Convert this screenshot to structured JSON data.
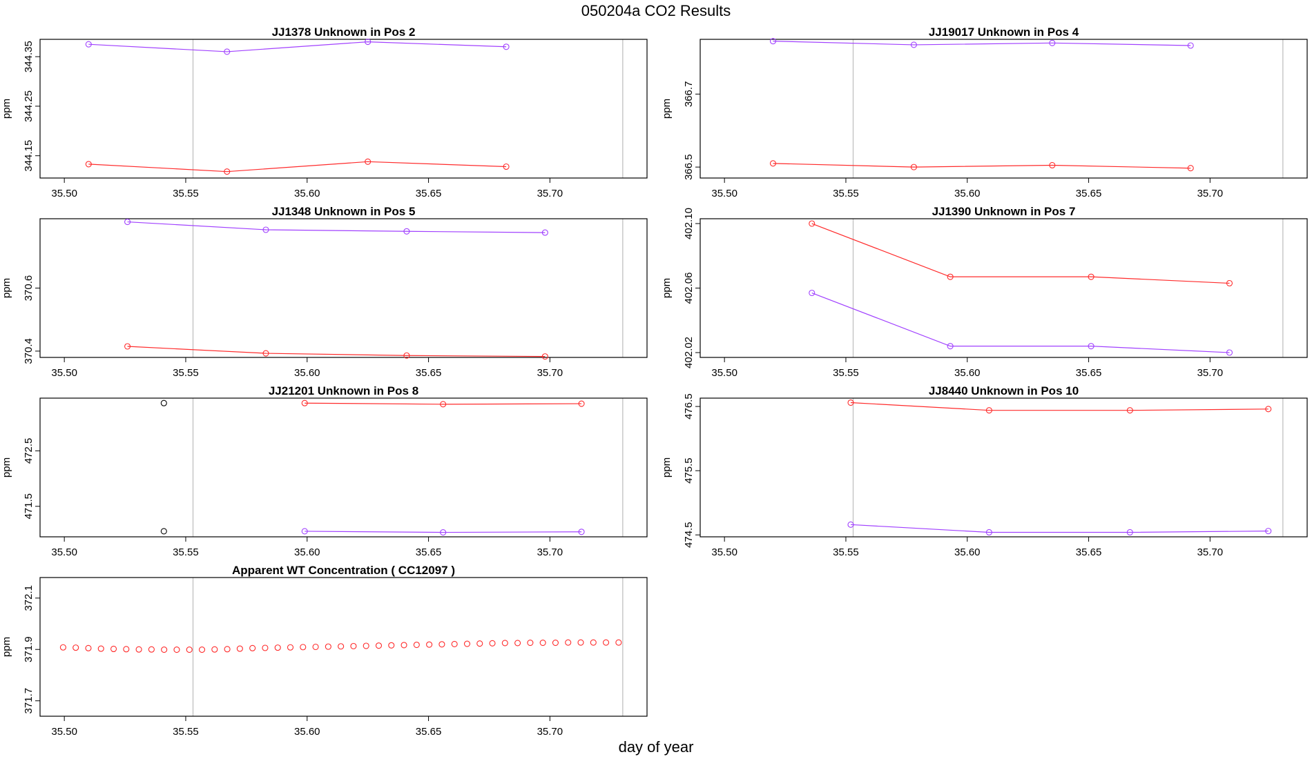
{
  "title": "050204a  CO2 Results",
  "xlabel": "day of year",
  "colors": {
    "red": "#ff2a2a",
    "purple": "#a040ff",
    "black": "#000000",
    "vline": "#c0c0c0"
  },
  "chart_data": [
    {
      "type": "line",
      "title": "JJ1378    Unknown in Pos 2",
      "ylabel": "ppm",
      "xlim": [
        35.49,
        35.74
      ],
      "ylim": [
        344.105,
        344.385
      ],
      "xticks": [
        "35.50",
        "35.55",
        "35.60",
        "35.65",
        "35.70"
      ],
      "yticks": [
        "344.15",
        "344.25",
        "344.35"
      ],
      "vlines": [
        35.553,
        35.73
      ],
      "series": [
        {
          "color": "purple",
          "x": [
            35.51,
            35.567,
            35.625,
            35.682
          ],
          "y": [
            344.375,
            344.36,
            344.38,
            344.37
          ]
        },
        {
          "color": "red",
          "x": [
            35.51,
            35.567,
            35.625,
            35.682
          ],
          "y": [
            344.133,
            344.118,
            344.138,
            344.128
          ]
        }
      ]
    },
    {
      "type": "line",
      "title": "JJ19017    Unknown in Pos 4",
      "ylabel": "ppm",
      "xlim": [
        35.49,
        35.74
      ],
      "ylim": [
        366.47,
        366.85
      ],
      "xticks": [
        "35.50",
        "35.55",
        "35.60",
        "35.65",
        "35.70"
      ],
      "yticks": [
        "366.5",
        "366.7"
      ],
      "vlines": [
        35.553,
        35.73
      ],
      "series": [
        {
          "color": "purple",
          "x": [
            35.52,
            35.578,
            35.635,
            35.692
          ],
          "y": [
            366.845,
            366.835,
            366.84,
            366.833
          ]
        },
        {
          "color": "red",
          "x": [
            35.52,
            35.578,
            35.635,
            35.692
          ],
          "y": [
            366.51,
            366.5,
            366.505,
            366.497
          ]
        }
      ]
    },
    {
      "type": "line",
      "title": "JJ1348    Unknown in Pos 5",
      "ylabel": "ppm",
      "xlim": [
        35.49,
        35.74
      ],
      "ylim": [
        370.38,
        370.82
      ],
      "xticks": [
        "35.50",
        "35.55",
        "35.60",
        "35.65",
        "35.70"
      ],
      "yticks": [
        "370.4",
        "370.6"
      ],
      "vlines": [
        35.553,
        35.73
      ],
      "series": [
        {
          "color": "purple",
          "x": [
            35.526,
            35.583,
            35.641,
            35.698
          ],
          "y": [
            370.81,
            370.785,
            370.78,
            370.776
          ]
        },
        {
          "color": "red",
          "x": [
            35.526,
            35.583,
            35.641,
            35.698
          ],
          "y": [
            370.415,
            370.393,
            370.386,
            370.383
          ]
        }
      ]
    },
    {
      "type": "line",
      "title": "JJ1390    Unknown in Pos 7",
      "ylabel": "ppm",
      "xlim": [
        35.49,
        35.74
      ],
      "ylim": [
        402.017,
        402.103
      ],
      "xticks": [
        "35.50",
        "35.55",
        "35.60",
        "35.65",
        "35.70"
      ],
      "yticks": [
        "402.02",
        "402.06",
        "402.10"
      ],
      "vlines": [
        35.553,
        35.73
      ],
      "series": [
        {
          "color": "red",
          "x": [
            35.536,
            35.593,
            35.651,
            35.708
          ],
          "y": [
            402.1,
            402.067,
            402.067,
            402.063
          ]
        },
        {
          "color": "purple",
          "x": [
            35.536,
            35.593,
            35.651,
            35.708
          ],
          "y": [
            402.057,
            402.024,
            402.024,
            402.02
          ]
        }
      ]
    },
    {
      "type": "line",
      "title": "JJ21201    Unknown in Pos 8",
      "ylabel": "ppm",
      "xlim": [
        35.49,
        35.74
      ],
      "ylim": [
        470.95,
        473.45
      ],
      "xticks": [
        "35.50",
        "35.55",
        "35.60",
        "35.65",
        "35.70"
      ],
      "yticks": [
        "471.5",
        "472.5"
      ],
      "vlines": [
        35.553,
        35.73
      ],
      "series": [
        {
          "color": "black",
          "x": [
            35.541
          ],
          "y": [
            473.36
          ]
        },
        {
          "color": "black",
          "x": [
            35.541
          ],
          "y": [
            471.05
          ]
        },
        {
          "color": "red",
          "x": [
            35.599,
            35.656,
            35.713
          ],
          "y": [
            473.36,
            473.34,
            473.35
          ]
        },
        {
          "color": "purple",
          "x": [
            35.599,
            35.656,
            35.713
          ],
          "y": [
            471.05,
            471.03,
            471.04
          ]
        }
      ]
    },
    {
      "type": "line",
      "title": "JJ8440    Unknown in Pos 10",
      "ylabel": "ppm",
      "xlim": [
        35.49,
        35.74
      ],
      "ylim": [
        474.47,
        476.63
      ],
      "xticks": [
        "35.50",
        "35.55",
        "35.60",
        "35.65",
        "35.70"
      ],
      "yticks": [
        "474.5",
        "475.5",
        "476.5"
      ],
      "vlines": [
        35.553,
        35.73
      ],
      "series": [
        {
          "color": "red",
          "x": [
            35.552,
            35.609,
            35.667,
            35.724
          ],
          "y": [
            476.56,
            476.44,
            476.44,
            476.46
          ]
        },
        {
          "color": "purple",
          "x": [
            35.552,
            35.609,
            35.667,
            35.724
          ],
          "y": [
            474.66,
            474.54,
            474.54,
            474.56
          ]
        }
      ]
    },
    {
      "type": "scatter",
      "title": "Apparent WT Concentration ( CC12097 )",
      "ylabel": "ppm",
      "xlim": [
        35.49,
        35.74
      ],
      "ylim": [
        371.64,
        372.18
      ],
      "xticks": [
        "35.50",
        "35.55",
        "35.60",
        "35.65",
        "35.70"
      ],
      "yticks": [
        "371.7",
        "371.9",
        "372.1"
      ],
      "vlines": [
        35.553,
        35.73
      ],
      "series": [
        {
          "color": "red",
          "x": [
            35.4995,
            35.5047,
            35.5099,
            35.5151,
            35.5203,
            35.5255,
            35.5307,
            35.5359,
            35.5411,
            35.5463,
            35.5515,
            35.5567,
            35.5619,
            35.5671,
            35.5723,
            35.5775,
            35.5827,
            35.5879,
            35.5931,
            35.5983,
            35.6035,
            35.6087,
            35.6139,
            35.6191,
            35.6243,
            35.6295,
            35.6347,
            35.6399,
            35.6451,
            35.6503,
            35.6555,
            35.6607,
            35.6659,
            35.6711,
            35.6763,
            35.6815,
            35.6867,
            35.6919,
            35.6971,
            35.7023,
            35.7075,
            35.7127,
            35.7179,
            35.7231,
            35.7283
          ],
          "y": [
            371.908,
            371.907,
            371.905,
            371.903,
            371.902,
            371.901,
            371.9,
            371.9,
            371.899,
            371.899,
            371.899,
            371.899,
            371.9,
            371.901,
            371.903,
            371.905,
            371.906,
            371.907,
            371.908,
            371.909,
            371.91,
            371.911,
            371.912,
            371.913,
            371.914,
            371.915,
            371.916,
            371.917,
            371.918,
            371.919,
            371.92,
            371.921,
            371.922,
            371.923,
            371.924,
            371.925,
            371.925,
            371.926,
            371.926,
            371.926,
            371.927,
            371.927,
            371.927,
            371.927,
            371.927
          ]
        }
      ]
    }
  ]
}
